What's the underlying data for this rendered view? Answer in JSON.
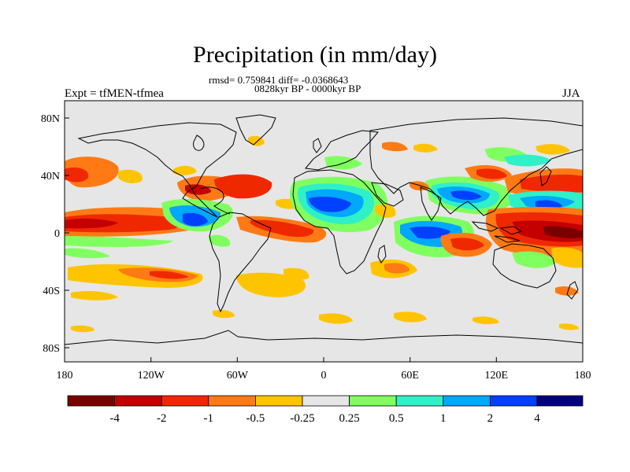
{
  "title": "Precipitation (in mm/day)",
  "stats": "rmsd= 0.759841 diff= -0.0368643",
  "period": "0828kyr BP - 0000kyr BP",
  "experiment": "Expt = tfMEN-tfmea",
  "season": "JJA",
  "y_ticks": [
    "80N",
    "40N",
    "0",
    "40S",
    "80S"
  ],
  "x_ticks": [
    "180",
    "120W",
    "60W",
    "0",
    "60E",
    "120E",
    "180"
  ],
  "colorbar": {
    "colors": [
      "#7a0000",
      "#c40000",
      "#f02800",
      "#ff7a14",
      "#ffc400",
      "#e6e6e6",
      "#80ff60",
      "#30f0c8",
      "#00a8ff",
      "#0040ff",
      "#000080"
    ],
    "labels": [
      "-4",
      "-2",
      "-1",
      "-0.5",
      "-0.25",
      "0.25",
      "0.5",
      "1",
      "2",
      "4"
    ]
  },
  "palette": {
    "dry_strong": "#c40000",
    "dry": "#f02800",
    "dry_mid": "#ff7a14",
    "dry_weak": "#ffc400",
    "neutral": "#e6e6e6",
    "wet_weak": "#80ff60",
    "wet": "#30f0c8",
    "wet_mid": "#00a8ff",
    "wet_strong": "#0040ff"
  }
}
